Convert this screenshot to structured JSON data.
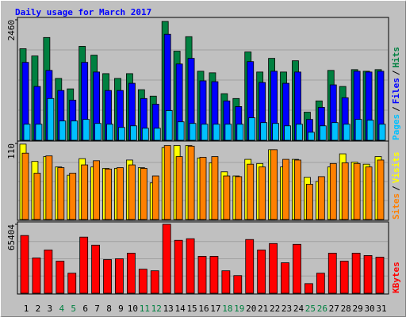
{
  "title": "Daily usage for March 2017",
  "highlight_color": "#008040",
  "highlight_indices": [
    3,
    4,
    10,
    11,
    17,
    18,
    24,
    25
  ],
  "legend_separator": "/",
  "chart_data": [
    {
      "type": "bar",
      "ylim": [
        0,
        2460
      ],
      "yticks": [
        2460
      ],
      "series": [
        {
          "name": "Hits",
          "color": "#008040",
          "values": [
            1870,
            1722,
            2099,
            1263,
            1050,
            1919,
            1738,
            1361,
            1263,
            1361,
            1033,
            902,
            2427,
            1820,
            2116,
            1410,
            1378,
            951,
            853,
            1804,
            1394,
            1673,
            1394,
            1624,
            574,
            804,
            1427,
            1099,
            1443,
            1410,
            1443
          ]
        },
        {
          "name": "Files",
          "color": "#0000ff",
          "values": [
            1591,
            1099,
            1427,
            1017,
            820,
            1591,
            1394,
            1017,
            1017,
            1164,
            853,
            738,
            2165,
            1558,
            1673,
            1214,
            1197,
            804,
            689,
            1607,
            1181,
            1410,
            1164,
            1394,
            426,
            672,
            1132,
            869,
            1410,
            1394,
            1410
          ]
        },
        {
          "name": "Pages",
          "color": "#00c0ff",
          "values": [
            328,
            328,
            853,
            394,
            394,
            426,
            344,
            328,
            262,
            295,
            246,
            246,
            607,
            377,
            344,
            328,
            328,
            328,
            328,
            459,
            361,
            344,
            295,
            328,
            164,
            295,
            361,
            328,
            426,
            410,
            328
          ]
        }
      ]
    },
    {
      "type": "bar",
      "ylim": [
        0,
        110
      ],
      "yticks": [
        110
      ],
      "series": [
        {
          "name": "Visits",
          "color": "#ffff00",
          "values": [
            109,
            84,
            91,
            76,
            64,
            88,
            76,
            74,
            74,
            86,
            75,
            53,
            104,
            107,
            107,
            89,
            82,
            69,
            63,
            87,
            81,
            101,
            76,
            87,
            61,
            55,
            76,
            95,
            83,
            80,
            91
          ]
        },
        {
          "name": "Sites",
          "color": "#ff8000",
          "values": [
            96,
            67,
            92,
            75,
            67,
            79,
            85,
            73,
            75,
            79,
            74,
            63,
            107,
            91,
            106,
            90,
            91,
            63,
            62,
            80,
            76,
            101,
            87,
            86,
            51,
            62,
            81,
            82,
            81,
            76,
            86
          ]
        }
      ]
    },
    {
      "type": "bar",
      "ylim": [
        0,
        65404
      ],
      "yticks": [
        65404
      ],
      "categories": [
        "1",
        "2",
        "3",
        "4",
        "5",
        "6",
        "7",
        "8",
        "9",
        "10",
        "11",
        "12",
        "13",
        "14",
        "15",
        "16",
        "17",
        "18",
        "19",
        "20",
        "21",
        "22",
        "23",
        "24",
        "25",
        "26",
        "27",
        "28",
        "29",
        "30",
        "31"
      ],
      "series": [
        {
          "name": "KBytes",
          "color": "#ff0000",
          "values": [
            54761,
            33463,
            41070,
            30420,
            19012,
            53240,
            45633,
            31941,
            32702,
            38026,
            22815,
            21294,
            65404,
            50197,
            51718,
            34985,
            34985,
            21294,
            16731,
            50957,
            41070,
            47155,
            28898,
            46394,
            9127,
            19012,
            38026,
            30420,
            38026,
            35746,
            34225
          ]
        }
      ]
    }
  ]
}
